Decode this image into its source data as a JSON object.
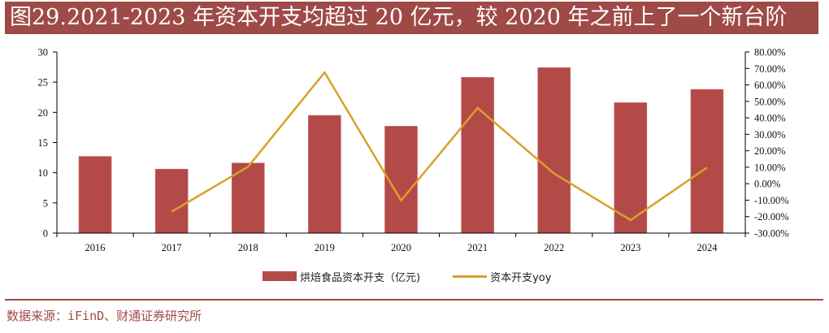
{
  "title": "图29.2021-2023 年资本开支均超过 20 亿元，较 2020 年之前上了一个新台阶",
  "source": "数据来源：iFinD、财通证券研究所",
  "colors": {
    "bar": "#b34a48",
    "line": "#d9a02a",
    "accent": "#9e4a47"
  },
  "chart_data": {
    "type": "bar",
    "title": "图29.2021-2023 年资本开支均超过 20 亿元，较 2020 年之前上了一个新台阶",
    "categories": [
      "2016",
      "2017",
      "2018",
      "2019",
      "2020",
      "2021",
      "2022",
      "2023",
      "2024"
    ],
    "series": [
      {
        "name": "烘焙食品资本开支（亿元)",
        "type": "bar",
        "axis": "left",
        "values": [
          12.7,
          10.6,
          11.6,
          19.5,
          17.7,
          25.8,
          27.4,
          21.6,
          23.8
        ]
      },
      {
        "name": "资本开支yoy",
        "type": "line",
        "axis": "right",
        "values": [
          null,
          -17.0,
          10.3,
          67.6,
          -10.2,
          46.0,
          6.2,
          -22.1,
          9.8
        ]
      }
    ],
    "y_left": {
      "range": [
        0,
        30
      ],
      "ticks": [
        "0",
        "5",
        "10",
        "15",
        "20",
        "25",
        "30"
      ]
    },
    "y_right": {
      "range": [
        -30,
        80
      ],
      "ticks": [
        "-30.00%",
        "-20.00%",
        "-10.00%",
        "0.00%",
        "10.00%",
        "20.00%",
        "30.00%",
        "40.00%",
        "50.00%",
        "60.00%",
        "70.00%",
        "80.00%"
      ]
    },
    "xlabel": "",
    "ylabel": "",
    "grid": false,
    "legend": "bottom"
  }
}
